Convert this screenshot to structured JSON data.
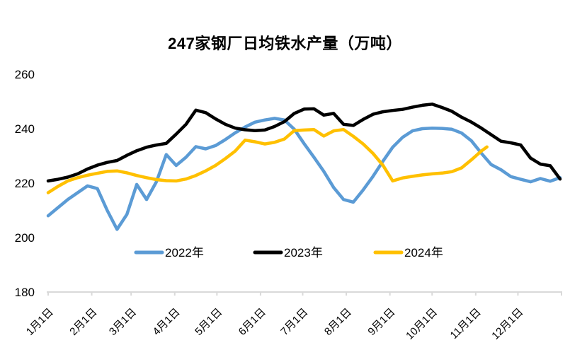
{
  "chart_data": {
    "type": "line",
    "title": "247家钢厂日均铁水产量（万吨）",
    "y_axis": {
      "min": 180,
      "max": 260,
      "ticks": [
        180,
        200,
        220,
        240,
        260
      ],
      "gridlines": false
    },
    "x_axis": {
      "unit": "day-of-year",
      "ticks": [
        {
          "day": 1,
          "label": "1月1日"
        },
        {
          "day": 32,
          "label": "2月1日"
        },
        {
          "day": 60,
          "label": "3月1日"
        },
        {
          "day": 91,
          "label": "4月1日"
        },
        {
          "day": 121,
          "label": "5月1日"
        },
        {
          "day": 152,
          "label": "6月1日"
        },
        {
          "day": 182,
          "label": "7月1日"
        },
        {
          "day": 213,
          "label": "8月1日"
        },
        {
          "day": 244,
          "label": "9月1日"
        },
        {
          "day": 274,
          "label": "10月1日"
        },
        {
          "day": 305,
          "label": "11月1日"
        },
        {
          "day": 335,
          "label": "12月1日"
        },
        {
          "day": 366,
          "label": ""
        }
      ]
    },
    "legend": {
      "position": "inside-bottom",
      "entries": [
        "2022年",
        "2023年",
        "2024年"
      ]
    },
    "series": [
      {
        "name": "2022年",
        "color": "#5B9BD5",
        "points": [
          [
            1,
            208
          ],
          [
            8,
            211
          ],
          [
            15,
            214
          ],
          [
            22,
            216.5
          ],
          [
            29,
            219
          ],
          [
            36,
            218
          ],
          [
            43,
            210
          ],
          [
            50,
            203
          ],
          [
            57,
            208.5
          ],
          [
            64,
            219.5
          ],
          [
            71,
            214
          ],
          [
            78,
            220.5
          ],
          [
            85,
            230.5
          ],
          [
            92,
            226.5
          ],
          [
            99,
            229.5
          ],
          [
            106,
            233.4
          ],
          [
            113,
            232.6
          ],
          [
            120,
            233.8
          ],
          [
            127,
            236
          ],
          [
            134,
            238.5
          ],
          [
            141,
            240.6
          ],
          [
            148,
            242.4
          ],
          [
            155,
            243.2
          ],
          [
            162,
            243.8
          ],
          [
            169,
            243.2
          ],
          [
            176,
            239.8
          ],
          [
            183,
            234.5
          ],
          [
            190,
            229.5
          ],
          [
            197,
            224.3
          ],
          [
            204,
            218.4
          ],
          [
            211,
            214
          ],
          [
            218,
            213
          ],
          [
            225,
            217.5
          ],
          [
            232,
            222.5
          ],
          [
            239,
            228
          ],
          [
            246,
            233.2
          ],
          [
            253,
            236.8
          ],
          [
            260,
            239.2
          ],
          [
            267,
            240
          ],
          [
            274,
            240.2
          ],
          [
            281,
            240.1
          ],
          [
            288,
            239.8
          ],
          [
            295,
            238.4
          ],
          [
            302,
            235.5
          ],
          [
            309,
            231
          ],
          [
            316,
            226.8
          ],
          [
            323,
            224.9
          ],
          [
            330,
            222.4
          ],
          [
            337,
            221.4
          ],
          [
            344,
            220.5
          ],
          [
            351,
            221.7
          ],
          [
            358,
            220.7
          ],
          [
            365,
            222
          ]
        ]
      },
      {
        "name": "2023年",
        "color": "#000000",
        "points": [
          [
            1,
            220.8
          ],
          [
            8,
            221.4
          ],
          [
            15,
            222.2
          ],
          [
            22,
            223.4
          ],
          [
            29,
            225.2
          ],
          [
            36,
            226.6
          ],
          [
            43,
            227.6
          ],
          [
            50,
            228.3
          ],
          [
            57,
            230.2
          ],
          [
            64,
            231.9
          ],
          [
            71,
            233.2
          ],
          [
            78,
            234
          ],
          [
            85,
            234.6
          ],
          [
            92,
            238
          ],
          [
            99,
            241.6
          ],
          [
            106,
            246.8
          ],
          [
            113,
            245.9
          ],
          [
            120,
            243.6
          ],
          [
            127,
            241.6
          ],
          [
            134,
            240.2
          ],
          [
            141,
            239.6
          ],
          [
            148,
            239.3
          ],
          [
            155,
            239.5
          ],
          [
            162,
            240.8
          ],
          [
            169,
            242.6
          ],
          [
            176,
            245.6
          ],
          [
            183,
            247.2
          ],
          [
            190,
            247.3
          ],
          [
            197,
            245
          ],
          [
            204,
            245.6
          ],
          [
            211,
            241.6
          ],
          [
            218,
            241.2
          ],
          [
            225,
            243.4
          ],
          [
            232,
            245.3
          ],
          [
            239,
            246.2
          ],
          [
            246,
            246.7
          ],
          [
            253,
            247.1
          ],
          [
            260,
            247.9
          ],
          [
            267,
            248.6
          ],
          [
            274,
            249
          ],
          [
            281,
            247.8
          ],
          [
            288,
            246.4
          ],
          [
            295,
            244.2
          ],
          [
            302,
            242.4
          ],
          [
            309,
            240.2
          ],
          [
            316,
            237.8
          ],
          [
            323,
            235.4
          ],
          [
            330,
            234.8
          ],
          [
            337,
            234
          ],
          [
            344,
            229.2
          ],
          [
            351,
            227
          ],
          [
            358,
            226.4
          ],
          [
            365,
            221.5
          ]
        ]
      },
      {
        "name": "2024年",
        "color": "#FFC000",
        "points": [
          [
            1,
            216.5
          ],
          [
            8,
            218.8
          ],
          [
            15,
            220.8
          ],
          [
            22,
            222
          ],
          [
            29,
            222.9
          ],
          [
            36,
            223.6
          ],
          [
            43,
            224.3
          ],
          [
            50,
            224.5
          ],
          [
            57,
            223.8
          ],
          [
            64,
            222.8
          ],
          [
            71,
            222
          ],
          [
            78,
            221.3
          ],
          [
            85,
            220.9
          ],
          [
            92,
            220.8
          ],
          [
            99,
            221.5
          ],
          [
            106,
            222.8
          ],
          [
            113,
            224.5
          ],
          [
            120,
            226.5
          ],
          [
            127,
            229
          ],
          [
            134,
            231.8
          ],
          [
            141,
            235.8
          ],
          [
            148,
            235.2
          ],
          [
            155,
            234.4
          ],
          [
            162,
            235
          ],
          [
            169,
            236.2
          ],
          [
            176,
            239.3
          ],
          [
            183,
            239.5
          ],
          [
            190,
            239.7
          ],
          [
            197,
            237.3
          ],
          [
            204,
            239.2
          ],
          [
            211,
            239.7
          ],
          [
            218,
            237.2
          ],
          [
            225,
            234.4
          ],
          [
            232,
            230.9
          ],
          [
            239,
            226.6
          ],
          [
            246,
            220.8
          ],
          [
            253,
            221.9
          ],
          [
            260,
            222.5
          ],
          [
            267,
            223
          ],
          [
            274,
            223.4
          ],
          [
            281,
            223.7
          ],
          [
            288,
            224.2
          ],
          [
            295,
            225.6
          ],
          [
            302,
            228.6
          ],
          [
            309,
            231.8
          ],
          [
            313,
            233.3
          ]
        ]
      }
    ]
  },
  "colors": {
    "axis_line": "#D9D9D9",
    "label_text": "#000000",
    "background": "#FFFFFF"
  }
}
